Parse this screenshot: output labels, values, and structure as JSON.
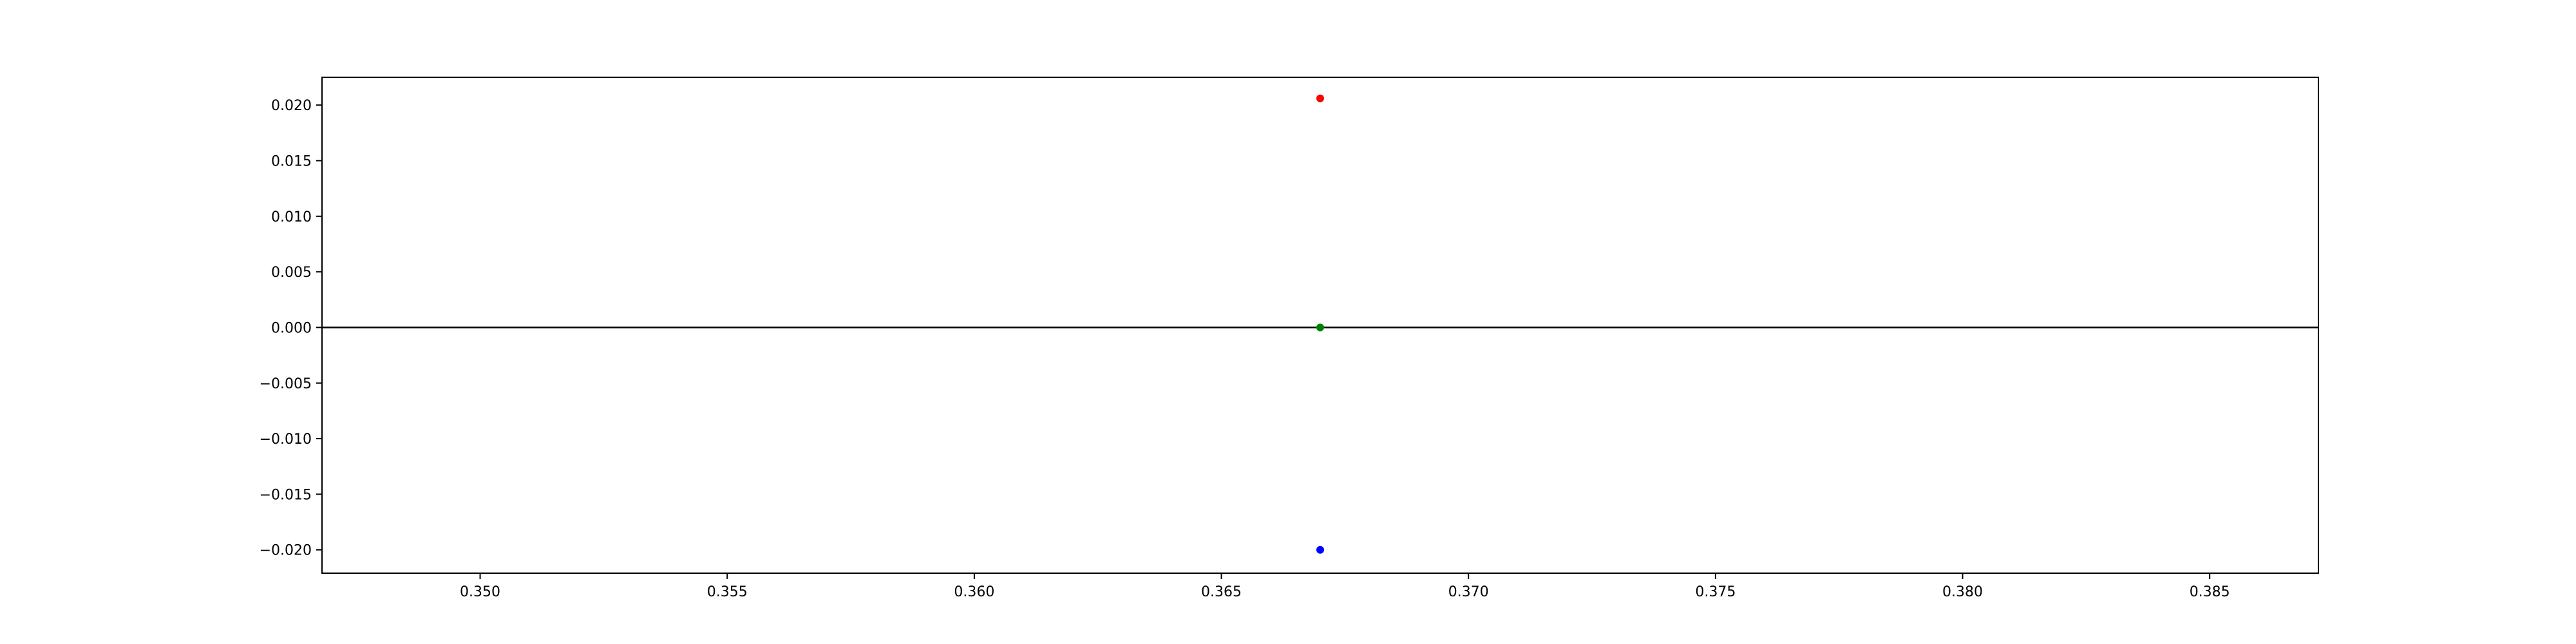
{
  "chart_data": {
    "type": "scatter",
    "title": "",
    "xlabel": "",
    "ylabel": "",
    "xlim": [
      0.3468,
      0.3872
    ],
    "ylim": [
      -0.0221,
      0.0225
    ],
    "x_ticks": [
      "0.350",
      "0.355",
      "0.360",
      "0.365",
      "0.370",
      "0.375",
      "0.380",
      "0.385"
    ],
    "y_ticks": [
      "0.020",
      "0.015",
      "0.010",
      "0.005",
      "0.000",
      "−0.005",
      "−0.010",
      "−0.015",
      "−0.020"
    ],
    "x_tick_values": [
      0.35,
      0.355,
      0.36,
      0.365,
      0.37,
      0.375,
      0.38,
      0.385
    ],
    "y_tick_values": [
      0.02,
      0.015,
      0.01,
      0.005,
      0.0,
      -0.005,
      -0.01,
      -0.015,
      -0.02
    ],
    "reference_line_y": 0,
    "grid": false,
    "series": [
      {
        "x": [
          0.367
        ],
        "y": [
          0.0206
        ],
        "color": "#ff0000"
      },
      {
        "x": [
          0.367
        ],
        "y": [
          0.0
        ],
        "color": "#008000"
      },
      {
        "x": [
          0.367
        ],
        "y": [
          -0.02
        ],
        "color": "#0000ff"
      }
    ]
  }
}
